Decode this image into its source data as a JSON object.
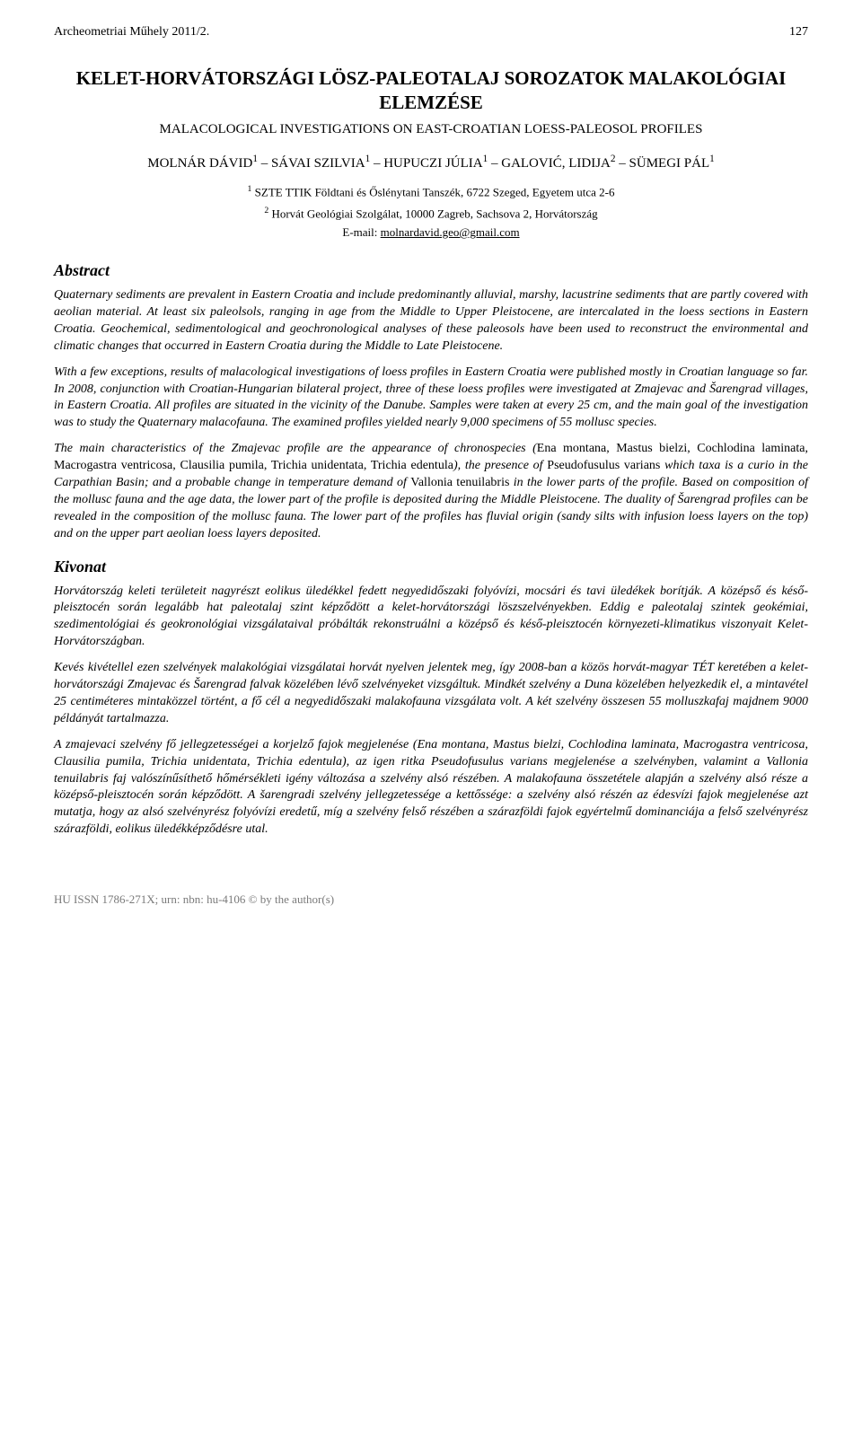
{
  "journal": "Archeometriai Műhely 2011/2.",
  "pageNumber": "127",
  "title": "KELET-HORVÁTORSZÁGI LÖSZ-PALEOTALAJ SOROZATOK MALAKOLÓGIAI ELEMZÉSE",
  "subtitle": "MALACOLOGICAL INVESTIGATIONS ON EAST-CROATIAN LOESS-PALEOSOL PROFILES",
  "authorsHtml": "MOLNÁR DÁVID<sup>1</sup> – SÁVAI SZILVIA<sup>1</sup> – HUPUCZI JÚLIA<sup>1</sup> – GALOVIĆ, LIDIJA<sup>2</sup> – SÜMEGI PÁL<sup>1</sup>",
  "affil1Html": "<sup>1</sup> SZTE TTIK Földtani és Őslénytani Tanszék, 6722 Szeged, Egyetem utca 2-6",
  "affil2Html": "<sup>2</sup> Horvát Geológiai Szolgálat, 10000 Zagreb, Sachsova 2, Horvátország",
  "emailLabel": "E-mail: ",
  "emailAddress": "molnardavid.geo@gmail.com",
  "abstractHead": "Abstract",
  "kivonatHead": "Kivonat",
  "abs1": "Quaternary sediments are prevalent in Eastern Croatia and include predominantly alluvial, marshy, lacustrine sediments that are partly covered with aeolian material. At least six paleolsols, ranging in age from the Middle to Upper Pleistocene, are intercalated in the loess sections in Eastern Croatia. Geochemical, sedimentological and geochronological analyses of these paleosols have been used to reconstruct the environmental and climatic changes that occurred in Eastern Croatia during the Middle to Late Pleistocene.",
  "abs2": "With a few exceptions, results of malacological investigations of loess profiles in Eastern Croatia were published mostly in Croatian language so far. In 2008, conjunction with Croatian-Hungarian bilateral project, three of these loess profiles were investigated at Zmajevac and Šarengrad villages, in Eastern Croatia. All profiles are situated in the vicinity of the Danube. Samples were taken at every 25 cm, and the main goal of the investigation was to study the Quaternary malacofauna. The examined profiles yielded nearly 9,000 specimens of 55 mollusc species.",
  "abs3Html": "The main characteristics of the Zmajevac profile are the appearance of chronospecies (<span class=\"roman\">Ena montana, Mastus bielzi, Cochlodina laminata, Macrogastra ventricosa, Clausilia pumila, Trichia unidentata, Trichia edentula</span>), the presence of <span class=\"roman\">Pseudofusulus varians</span> which taxa is a curio in the Carpathian Basin; and a probable change in temperature demand of <span class=\"roman\">Vallonia tenuilabris</span> in the lower parts of the profile. Based on composition of the mollusc fauna and the age data, the lower part of the profile is deposited during the Middle Pleistocene. The duality of Šarengrad profiles can be revealed in the composition of the mollusc fauna. The lower part of the profiles has fluvial origin (sandy silts with infusion loess layers on the top) and on the upper part aeolian loess layers deposited.",
  "kiv1": "Horvátország keleti területeit nagyrészt eolikus üledékkel fedett negyedidőszaki folyóvízi, mocsári és tavi üledékek borítják. A középső és késő-pleisztocén során legalább hat paleotalaj szint képződött a kelet-horvátországi löszszelvényekben. Eddig e paleotalaj szintek geokémiai, szedimentológiai és geokronológiai vizsgálataival próbálták rekonstruálni a középső és késő-pleisztocén környezeti-klimatikus viszonyait Kelet-Horvátországban.",
  "kiv2": "Kevés kivétellel ezen szelvények malakológiai vizsgálatai horvát nyelven jelentek meg, így 2008-ban a közös horvát-magyar TÉT keretében a kelet-horvátországi Zmajevac és Šarengrad falvak közelében lévő szelvényeket vizsgáltuk. Mindkét szelvény a Duna közelében helyezkedik el, a mintavétel 25 centiméteres mintaközzel történt, a fő cél a negyedidőszaki malakofauna vizsgálata volt. A két szelvény összesen 55 molluszkafaj majdnem 9000 példányát tartalmazza.",
  "kiv3": "A zmajevaci szelvény fő jellegzetességei a korjelző fajok megjelenése (Ena montana, Mastus bielzi, Cochlodina laminata, Macrogastra ventricosa, Clausilia pumila, Trichia unidentata, Trichia edentula), az igen ritka Pseudofusulus varians megjelenése a szelvényben, valamint a Vallonia tenuilabris faj valószínűsíthető hőmérsékleti igény változása a szelvény alsó részében. A malakofauna összetétele alapján a szelvény alsó része a középső-pleisztocén során képződött. A šarengradi szelvény jellegzetessége a kettőssége: a szelvény alsó részén az édesvízi fajok megjelenése azt mutatja, hogy az alsó szelvényrész folyóvízi eredetű, míg a szelvény felső részében a szárazföldi fajok egyértelmű dominanciája a felső szelvényrész szárazföldi, eolikus üledékképződésre utal.",
  "footer": "HU ISSN 1786-271X; urn: nbn: hu-4106 © by the author(s)"
}
